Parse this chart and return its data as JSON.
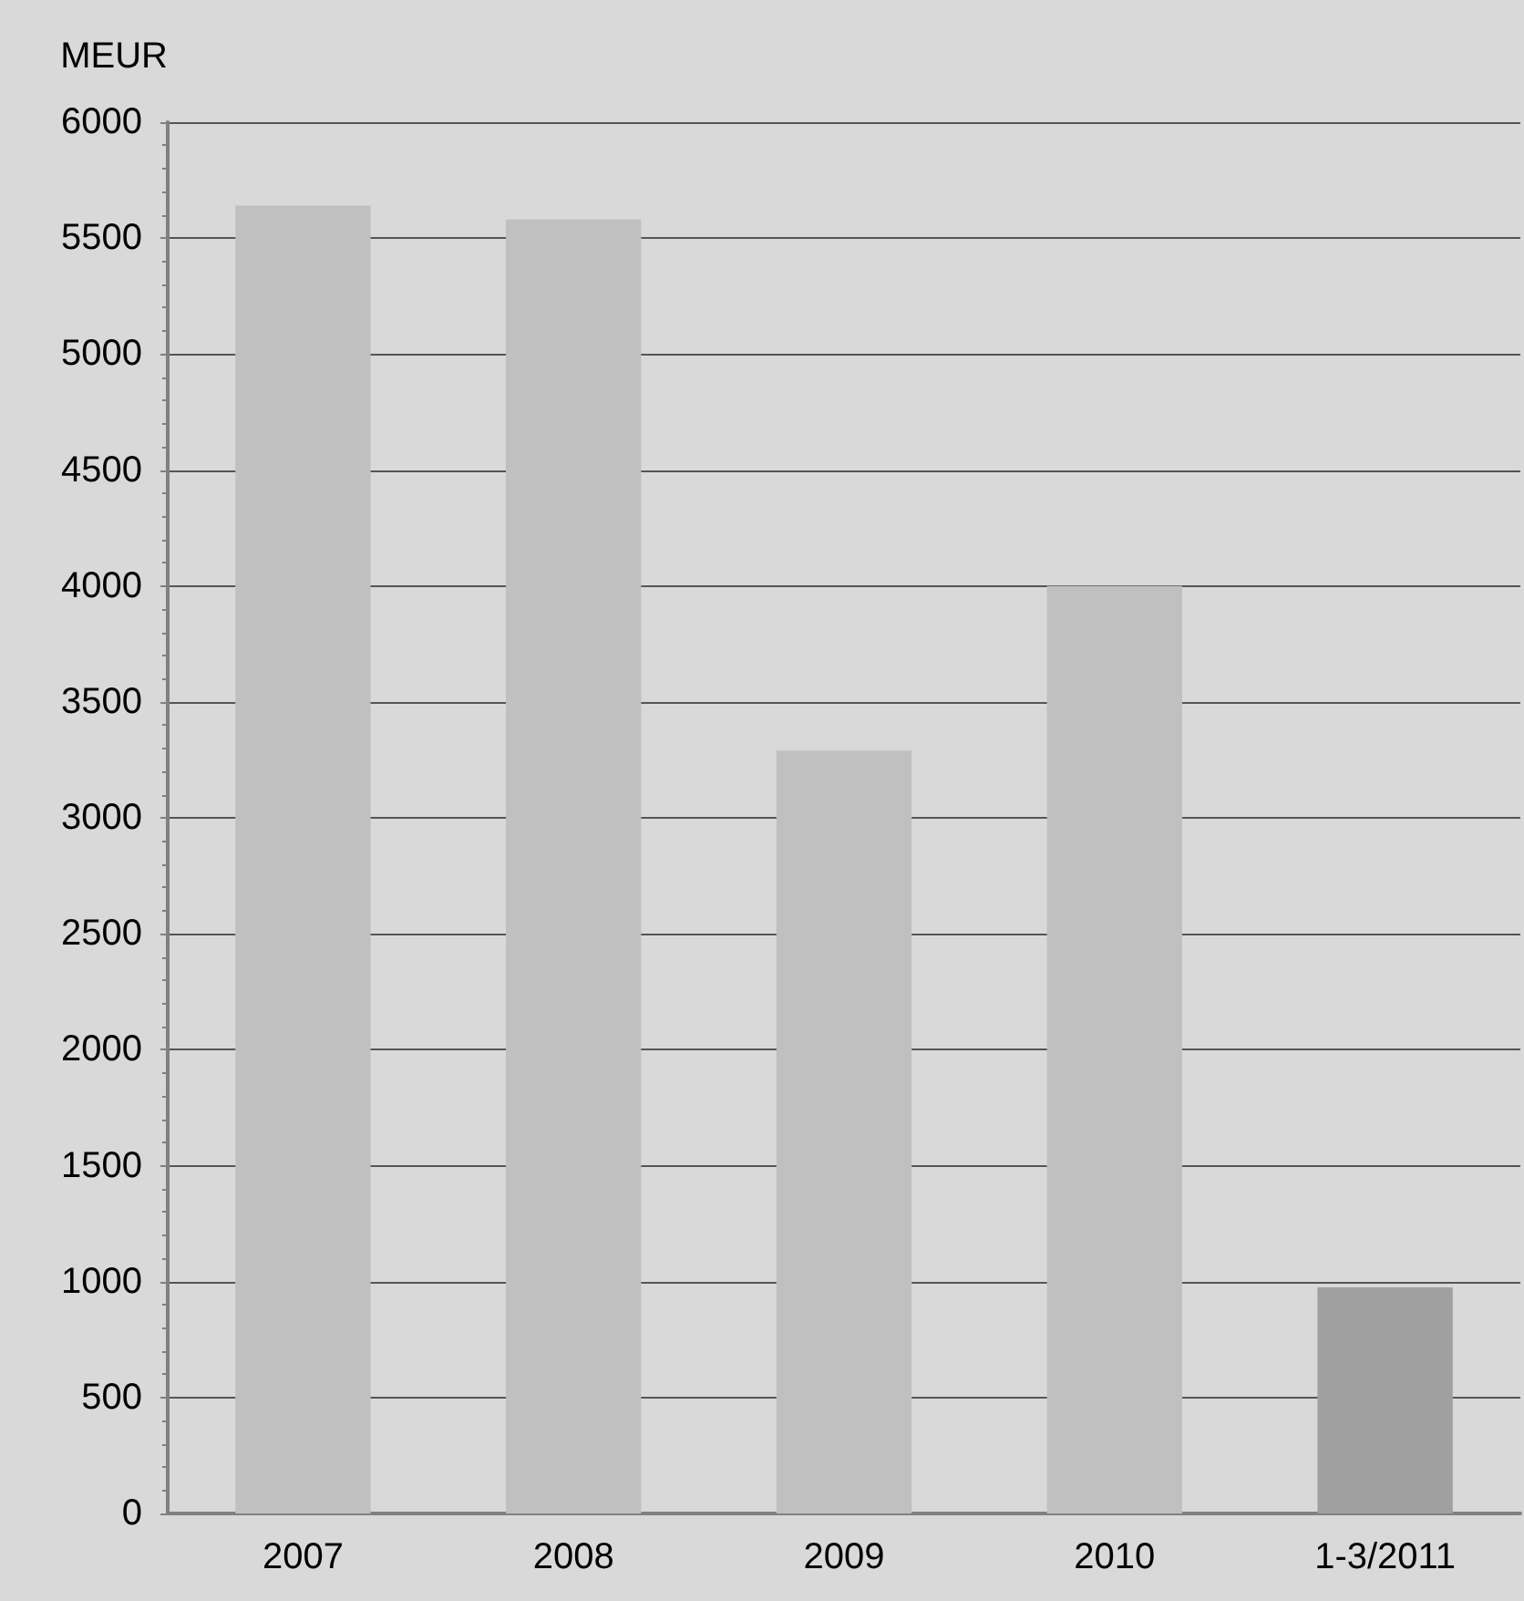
{
  "chart_data": {
    "type": "bar",
    "ylabel": "MEUR",
    "categories": [
      "2007",
      "2008",
      "2009",
      "2010",
      "1-3/2011"
    ],
    "values": [
      5640,
      5580,
      3290,
      4000,
      975
    ],
    "colors": [
      "#c0c0c0",
      "#c0c0c0",
      "#c0c0c0",
      "#c0c0c0",
      "#a0a0a0"
    ],
    "ylim": [
      0,
      6000
    ],
    "yticks": [
      0,
      500,
      1000,
      1500,
      2000,
      2500,
      3000,
      3500,
      4000,
      4500,
      5000,
      5500,
      6000
    ],
    "grid": "y"
  }
}
